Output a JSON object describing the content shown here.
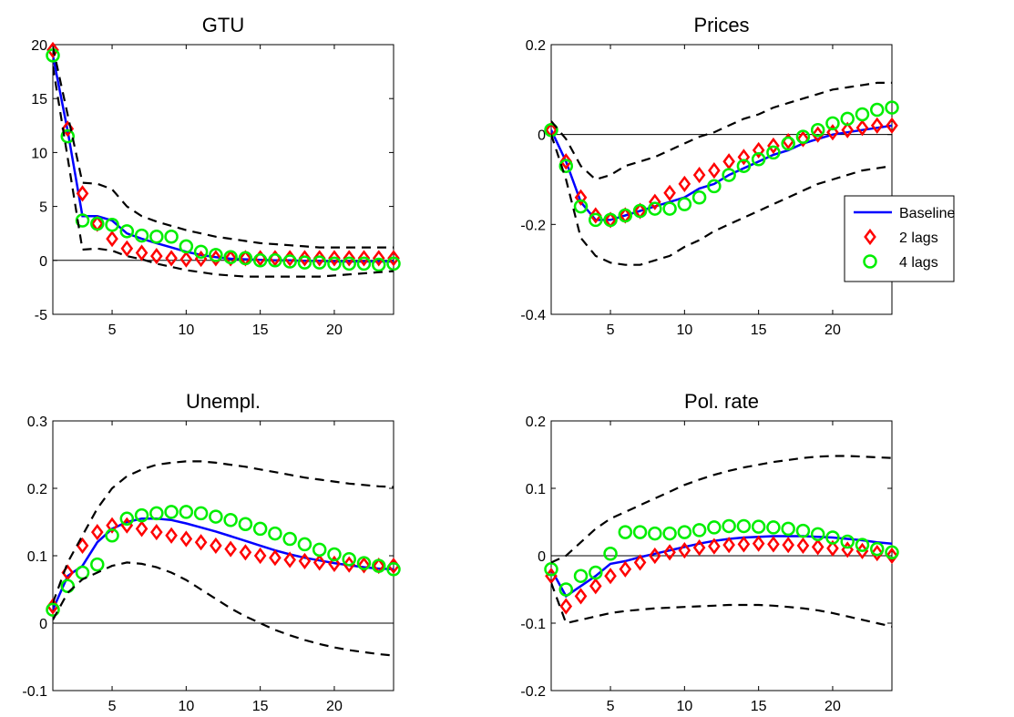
{
  "colors": {
    "baseline": "#0000ff",
    "two_lags": "#ff0000",
    "four_lags": "#00ee00",
    "bands": "#000000",
    "zero_line": "#000000"
  },
  "legend": {
    "placement": "right-middle of Prices panel",
    "entries": [
      {
        "key": "baseline",
        "label": "Baseline",
        "style": "solid-line"
      },
      {
        "key": "two_lags",
        "label": "2 lags",
        "style": "diamond-markers"
      },
      {
        "key": "four_lags",
        "label": "4 lags",
        "style": "circle-markers"
      }
    ]
  },
  "chart_data": [
    {
      "type": "line",
      "title": "GTU",
      "xlim": [
        1,
        24
      ],
      "ylim": [
        -5,
        20
      ],
      "xticks": [
        5,
        10,
        15,
        20
      ],
      "yticks": [
        -5,
        0,
        5,
        10,
        15,
        20
      ],
      "ytick_labels": [
        "-5",
        "0",
        "5",
        "10",
        "15",
        "20"
      ],
      "x": [
        1,
        2,
        3,
        4,
        5,
        6,
        7,
        8,
        9,
        10,
        11,
        12,
        13,
        14,
        15,
        16,
        17,
        18,
        19,
        20,
        21,
        22,
        23,
        24
      ],
      "series": [
        {
          "name": "Baseline",
          "key": "baseline",
          "values": [
            19.0,
            12.0,
            4.1,
            4.1,
            3.7,
            2.5,
            2.0,
            1.6,
            1.2,
            0.8,
            0.5,
            0.3,
            0.15,
            0.1,
            0.05,
            0.0,
            0.0,
            -0.05,
            -0.05,
            -0.1,
            -0.1,
            -0.1,
            -0.1,
            -0.1
          ]
        },
        {
          "name": "2 lags",
          "key": "two_lags",
          "values": [
            19.5,
            12.2,
            6.2,
            3.4,
            2.0,
            1.1,
            0.7,
            0.4,
            0.2,
            0.1,
            0.15,
            0.2,
            0.2,
            0.2,
            0.2,
            0.2,
            0.2,
            0.2,
            0.2,
            0.2,
            0.2,
            0.2,
            0.2,
            0.2
          ]
        },
        {
          "name": "4 lags",
          "key": "four_lags",
          "values": [
            19.0,
            11.5,
            3.7,
            3.4,
            3.3,
            2.7,
            2.3,
            2.2,
            2.2,
            1.3,
            0.8,
            0.5,
            0.3,
            0.2,
            0.0,
            0.0,
            -0.1,
            -0.2,
            -0.2,
            -0.3,
            -0.3,
            -0.3,
            -0.4,
            -0.3
          ]
        },
        {
          "name": "upper band",
          "key": "bands",
          "dashed": true,
          "values": [
            19.8,
            13.5,
            7.2,
            7.1,
            6.6,
            5.0,
            4.1,
            3.6,
            3.2,
            2.8,
            2.5,
            2.2,
            2.0,
            1.8,
            1.6,
            1.5,
            1.4,
            1.3,
            1.2,
            1.2,
            1.2,
            1.2,
            1.2,
            1.2
          ]
        },
        {
          "name": "lower band",
          "key": "bands",
          "dashed": true,
          "values": [
            18.0,
            9.5,
            1.0,
            1.1,
            0.9,
            0.4,
            0.1,
            -0.3,
            -0.6,
            -0.9,
            -1.1,
            -1.3,
            -1.4,
            -1.5,
            -1.5,
            -1.5,
            -1.5,
            -1.5,
            -1.5,
            -1.4,
            -1.3,
            -1.2,
            -1.1,
            -1.0
          ]
        }
      ]
    },
    {
      "type": "line",
      "title": "Prices",
      "xlim": [
        1,
        24
      ],
      "ylim": [
        -0.4,
        0.2
      ],
      "xticks": [
        5,
        10,
        15,
        20
      ],
      "yticks": [
        -0.4,
        -0.2,
        0,
        0.2
      ],
      "ytick_labels": [
        "-0.4",
        "-0.2",
        "0",
        "0.2"
      ],
      "x": [
        1,
        2,
        3,
        4,
        5,
        6,
        7,
        8,
        9,
        10,
        11,
        12,
        13,
        14,
        15,
        16,
        17,
        18,
        19,
        20,
        21,
        22,
        23,
        24
      ],
      "series": [
        {
          "name": "Baseline",
          "key": "baseline",
          "values": [
            0.01,
            -0.06,
            -0.15,
            -0.19,
            -0.19,
            -0.18,
            -0.17,
            -0.16,
            -0.15,
            -0.14,
            -0.12,
            -0.11,
            -0.09,
            -0.075,
            -0.06,
            -0.045,
            -0.035,
            -0.02,
            -0.01,
            0.0,
            0.005,
            0.01,
            0.015,
            0.02
          ]
        },
        {
          "name": "2 lags",
          "key": "two_lags",
          "values": [
            0.01,
            -0.06,
            -0.14,
            -0.18,
            -0.19,
            -0.18,
            -0.17,
            -0.15,
            -0.13,
            -0.11,
            -0.09,
            -0.08,
            -0.06,
            -0.05,
            -0.035,
            -0.025,
            -0.015,
            -0.01,
            0.0,
            0.005,
            0.01,
            0.015,
            0.02,
            0.02
          ]
        },
        {
          "name": "4 lags",
          "key": "four_lags",
          "values": [
            0.01,
            -0.07,
            -0.16,
            -0.19,
            -0.19,
            -0.18,
            -0.17,
            -0.165,
            -0.165,
            -0.155,
            -0.14,
            -0.115,
            -0.09,
            -0.07,
            -0.055,
            -0.04,
            -0.02,
            -0.005,
            0.01,
            0.025,
            0.035,
            0.045,
            0.055,
            0.06
          ]
        },
        {
          "name": "upper band",
          "key": "bands",
          "dashed": true,
          "values": [
            0.03,
            -0.01,
            -0.07,
            -0.1,
            -0.09,
            -0.07,
            -0.06,
            -0.05,
            -0.035,
            -0.02,
            -0.005,
            0.005,
            0.02,
            0.035,
            0.045,
            0.06,
            0.07,
            0.08,
            0.09,
            0.1,
            0.105,
            0.11,
            0.115,
            0.115
          ]
        },
        {
          "name": "lower band",
          "key": "bands",
          "dashed": true,
          "values": [
            0.0,
            -0.1,
            -0.23,
            -0.27,
            -0.285,
            -0.29,
            -0.29,
            -0.28,
            -0.27,
            -0.25,
            -0.235,
            -0.215,
            -0.2,
            -0.185,
            -0.17,
            -0.155,
            -0.14,
            -0.125,
            -0.11,
            -0.1,
            -0.09,
            -0.08,
            -0.075,
            -0.07
          ]
        }
      ]
    },
    {
      "type": "line",
      "title": "Unempl.",
      "xlim": [
        1,
        24
      ],
      "ylim": [
        -0.1,
        0.3
      ],
      "xticks": [
        5,
        10,
        15,
        20
      ],
      "yticks": [
        -0.1,
        0,
        0.1,
        0.2,
        0.3
      ],
      "ytick_labels": [
        "-0.1",
        "0",
        "0.1",
        "0.2",
        "0.3"
      ],
      "x": [
        1,
        2,
        3,
        4,
        5,
        6,
        7,
        8,
        9,
        10,
        11,
        12,
        13,
        14,
        15,
        16,
        17,
        18,
        19,
        20,
        21,
        22,
        23,
        24
      ],
      "series": [
        {
          "name": "Baseline",
          "key": "baseline",
          "values": [
            0.02,
            0.07,
            0.085,
            0.12,
            0.14,
            0.15,
            0.155,
            0.155,
            0.153,
            0.148,
            0.142,
            0.136,
            0.129,
            0.122,
            0.115,
            0.108,
            0.102,
            0.097,
            0.093,
            0.089,
            0.086,
            0.083,
            0.081,
            0.08
          ]
        },
        {
          "name": "2 lags",
          "key": "two_lags",
          "values": [
            0.025,
            0.075,
            0.115,
            0.135,
            0.145,
            0.145,
            0.14,
            0.135,
            0.13,
            0.125,
            0.12,
            0.115,
            0.11,
            0.105,
            0.1,
            0.097,
            0.094,
            0.092,
            0.09,
            0.088,
            0.087,
            0.086,
            0.085,
            0.085
          ]
        },
        {
          "name": "4 lags",
          "key": "four_lags",
          "values": [
            0.02,
            0.055,
            0.075,
            0.087,
            0.13,
            0.155,
            0.16,
            0.163,
            0.165,
            0.165,
            0.163,
            0.158,
            0.153,
            0.147,
            0.14,
            0.133,
            0.125,
            0.117,
            0.109,
            0.102,
            0.095,
            0.089,
            0.085,
            0.08
          ]
        },
        {
          "name": "upper band",
          "key": "bands",
          "dashed": true,
          "values": [
            0.03,
            0.09,
            0.13,
            0.17,
            0.2,
            0.218,
            0.228,
            0.235,
            0.238,
            0.24,
            0.24,
            0.238,
            0.235,
            0.232,
            0.228,
            0.224,
            0.22,
            0.216,
            0.213,
            0.21,
            0.207,
            0.205,
            0.203,
            0.202
          ]
        },
        {
          "name": "lower band",
          "key": "bands",
          "dashed": true,
          "values": [
            0.005,
            0.045,
            0.065,
            0.075,
            0.085,
            0.09,
            0.088,
            0.083,
            0.075,
            0.064,
            0.05,
            0.036,
            0.022,
            0.01,
            0.0,
            -0.01,
            -0.018,
            -0.025,
            -0.031,
            -0.036,
            -0.04,
            -0.043,
            -0.046,
            -0.048
          ]
        }
      ]
    },
    {
      "type": "line",
      "title": "Pol. rate",
      "xlim": [
        1,
        24
      ],
      "ylim": [
        -0.2,
        0.2
      ],
      "xticks": [
        5,
        10,
        15,
        20
      ],
      "yticks": [
        -0.2,
        -0.1,
        0,
        0.1,
        0.2
      ],
      "ytick_labels": [
        "-0.2",
        "-0.1",
        "0",
        "0.1",
        "0.2"
      ],
      "x": [
        1,
        2,
        3,
        4,
        5,
        6,
        7,
        8,
        9,
        10,
        11,
        12,
        13,
        14,
        15,
        16,
        17,
        18,
        19,
        20,
        21,
        22,
        23,
        24
      ],
      "series": [
        {
          "name": "Baseline",
          "key": "baseline",
          "values": [
            -0.02,
            -0.06,
            -0.045,
            -0.03,
            -0.012,
            -0.008,
            -0.002,
            0.003,
            0.008,
            0.013,
            0.018,
            0.022,
            0.025,
            0.027,
            0.028,
            0.029,
            0.029,
            0.029,
            0.028,
            0.027,
            0.025,
            0.023,
            0.02,
            0.018
          ]
        },
        {
          "name": "2 lags",
          "key": "two_lags",
          "values": [
            -0.03,
            -0.075,
            -0.06,
            -0.045,
            -0.03,
            -0.02,
            -0.01,
            0.0,
            0.005,
            0.008,
            0.012,
            0.014,
            0.016,
            0.017,
            0.018,
            0.017,
            0.016,
            0.015,
            0.013,
            0.011,
            0.009,
            0.007,
            0.004,
            0.0
          ]
        },
        {
          "name": "4 lags",
          "key": "four_lags",
          "values": [
            -0.02,
            -0.05,
            -0.03,
            -0.025,
            0.003,
            0.035,
            0.035,
            0.033,
            0.033,
            0.035,
            0.038,
            0.042,
            0.044,
            0.044,
            0.043,
            0.042,
            0.04,
            0.037,
            0.032,
            0.027,
            0.021,
            0.016,
            0.01,
            0.005
          ]
        },
        {
          "name": "upper band",
          "key": "bands",
          "dashed": true,
          "values": [
            -0.01,
            0.0,
            0.02,
            0.04,
            0.055,
            0.065,
            0.075,
            0.085,
            0.095,
            0.105,
            0.113,
            0.12,
            0.126,
            0.131,
            0.135,
            0.139,
            0.142,
            0.145,
            0.147,
            0.148,
            0.148,
            0.147,
            0.146,
            0.145
          ]
        },
        {
          "name": "lower band",
          "key": "bands",
          "dashed": true,
          "values": [
            -0.04,
            -0.1,
            -0.095,
            -0.09,
            -0.085,
            -0.082,
            -0.08,
            -0.078,
            -0.077,
            -0.076,
            -0.075,
            -0.074,
            -0.073,
            -0.073,
            -0.073,
            -0.074,
            -0.076,
            -0.078,
            -0.081,
            -0.085,
            -0.09,
            -0.095,
            -0.1,
            -0.105
          ]
        }
      ]
    }
  ]
}
